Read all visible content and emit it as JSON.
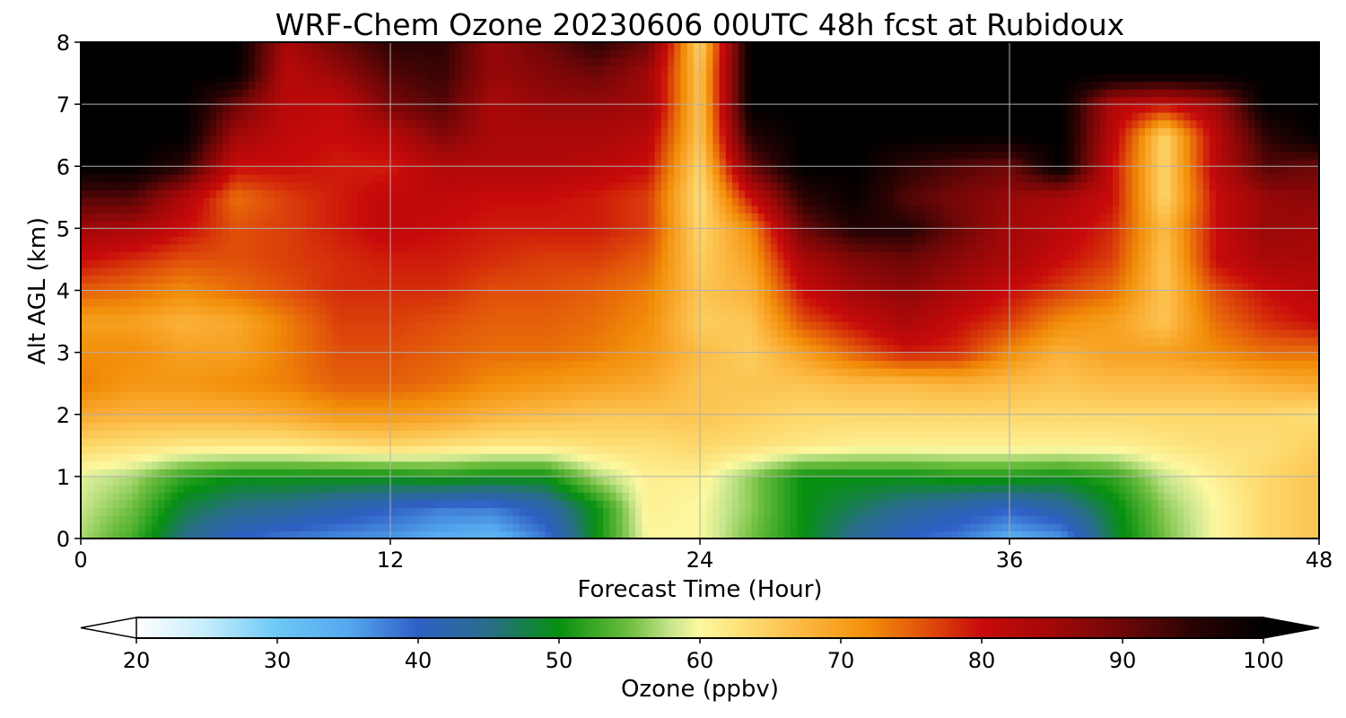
{
  "chart_data": {
    "type": "heatmap",
    "title": "WRF-Chem Ozone  20230606 00UTC 48h fcst at Rubidoux",
    "xlabel": "Forecast Time (Hour)",
    "ylabel": "Alt AGL (km)",
    "xlim": [
      0,
      48
    ],
    "ylim": [
      0,
      8
    ],
    "xticks": [
      0,
      12,
      24,
      36,
      48
    ],
    "yticks": [
      0,
      1,
      2,
      3,
      4,
      5,
      6,
      7,
      8
    ],
    "grid": true,
    "x": [
      0,
      2,
      4,
      6,
      8,
      10,
      12,
      14,
      16,
      18,
      20,
      22,
      24,
      26,
      28,
      30,
      32,
      34,
      36,
      38,
      40,
      42,
      44,
      46,
      48
    ],
    "y": [
      0,
      0.5,
      1,
      1.5,
      2,
      2.5,
      3,
      3.5,
      4,
      4.5,
      5,
      5.5,
      6,
      6.5,
      7,
      7.5,
      8
    ],
    "z": [
      [
        57,
        53,
        45,
        40,
        38,
        37,
        36,
        34,
        33,
        38,
        50,
        60,
        60,
        55,
        50,
        44,
        40,
        38,
        34,
        36,
        48,
        55,
        60,
        64,
        66
      ],
      [
        58,
        55,
        48,
        45,
        44,
        42,
        40,
        38,
        38,
        42,
        50,
        61,
        60,
        56,
        50,
        47,
        44,
        42,
        40,
        43,
        49,
        56,
        60,
        64,
        66
      ],
      [
        59,
        57,
        52,
        50,
        50,
        50,
        50,
        51,
        50,
        50,
        57,
        61,
        61,
        56,
        50,
        50,
        50,
        51,
        51,
        50,
        52,
        58,
        61,
        64,
        66
      ],
      [
        64,
        63,
        62,
        62,
        62,
        63,
        64,
        63,
        62,
        62,
        63,
        63,
        64,
        63,
        62,
        61,
        61,
        61,
        61,
        61,
        61,
        62,
        63,
        63,
        65
      ],
      [
        69,
        68,
        68,
        68,
        69,
        71,
        71,
        70,
        68,
        67,
        66,
        66,
        66,
        65,
        64,
        64,
        64,
        64,
        64,
        64,
        64,
        64,
        64,
        64,
        63
      ],
      [
        73,
        71,
        71,
        72,
        73,
        75,
        75,
        74,
        72,
        71,
        70,
        69,
        66,
        66,
        66,
        67,
        67,
        68,
        67,
        66,
        67,
        67,
        67,
        68,
        69
      ],
      [
        72,
        72,
        70,
        70,
        73,
        76,
        76,
        75,
        74,
        74,
        73,
        71,
        67,
        65,
        70,
        75,
        79,
        78,
        72,
        68,
        70,
        70,
        72,
        74,
        74
      ],
      [
        70,
        70,
        68,
        69,
        73,
        77,
        77,
        76,
        75,
        75,
        74,
        72,
        65,
        66,
        76,
        80,
        84,
        80,
        77,
        72,
        70,
        66,
        74,
        78,
        80
      ],
      [
        75,
        74,
        72,
        74,
        76,
        78,
        78,
        78,
        76,
        76,
        75,
        73,
        66,
        68,
        80,
        85,
        87,
        84,
        80,
        77,
        74,
        66,
        76,
        80,
        82
      ],
      [
        80,
        78,
        76,
        76,
        77,
        78,
        79,
        79,
        78,
        77,
        77,
        75,
        65,
        70,
        84,
        88,
        90,
        87,
        84,
        80,
        77,
        66,
        80,
        84,
        84
      ],
      [
        85,
        84,
        80,
        76,
        77,
        79,
        81,
        80,
        79,
        79,
        79,
        77,
        64,
        72,
        90,
        96,
        96,
        90,
        85,
        82,
        78,
        67,
        80,
        86,
        85
      ],
      [
        92,
        92,
        83,
        74,
        77,
        79,
        81,
        81,
        80,
        80,
        79,
        77,
        63,
        80,
        95,
        99,
        92,
        89,
        86,
        84,
        80,
        64,
        80,
        86,
        87
      ],
      [
        100,
        100,
        95,
        80,
        80,
        79,
        79,
        83,
        83,
        83,
        82,
        80,
        64,
        90,
        100,
        100,
        95,
        92,
        90,
        100,
        80,
        64,
        82,
        92,
        90
      ],
      [
        100,
        100,
        100,
        85,
        81,
        80,
        82,
        88,
        84,
        84,
        84,
        82,
        66,
        96,
        100,
        100,
        100,
        100,
        100,
        100,
        82,
        64,
        82,
        95,
        100
      ],
      [
        100,
        100,
        100,
        90,
        82,
        81,
        89,
        92,
        84,
        86,
        86,
        85,
        66,
        100,
        100,
        100,
        100,
        100,
        100,
        100,
        83,
        80,
        85,
        100,
        100
      ],
      [
        100,
        100,
        100,
        100,
        82,
        86,
        92,
        94,
        86,
        88,
        90,
        85,
        66,
        100,
        100,
        100,
        100,
        100,
        100,
        100,
        100,
        100,
        100,
        100,
        100
      ],
      [
        100,
        100,
        100,
        100,
        84,
        90,
        95,
        95,
        86,
        90,
        95,
        90,
        64,
        100,
        100,
        100,
        100,
        100,
        100,
        100,
        100,
        100,
        100,
        100,
        100
      ]
    ],
    "colorbar": {
      "label": "Ozone  (ppbv)",
      "min": 20,
      "max": 100,
      "ticks": [
        20,
        30,
        40,
        50,
        60,
        70,
        80,
        90,
        100
      ],
      "extend": "both",
      "stops": [
        [
          20,
          "#ffffff"
        ],
        [
          25,
          "#c4ecfb"
        ],
        [
          30,
          "#6cc8f5"
        ],
        [
          35,
          "#55a8ee"
        ],
        [
          40,
          "#2f5fc5"
        ],
        [
          45,
          "#296d8a"
        ],
        [
          50,
          "#06900f"
        ],
        [
          55,
          "#6fbe3f"
        ],
        [
          58,
          "#c8e68d"
        ],
        [
          60,
          "#fdf8a0"
        ],
        [
          64,
          "#fdd76a"
        ],
        [
          68,
          "#fbb23a"
        ],
        [
          72,
          "#f28e09"
        ],
        [
          76,
          "#e0500a"
        ],
        [
          80,
          "#c80a0a"
        ],
        [
          85,
          "#a20808"
        ],
        [
          90,
          "#6e0707"
        ],
        [
          95,
          "#2a0303"
        ],
        [
          100,
          "#000000"
        ]
      ]
    }
  }
}
